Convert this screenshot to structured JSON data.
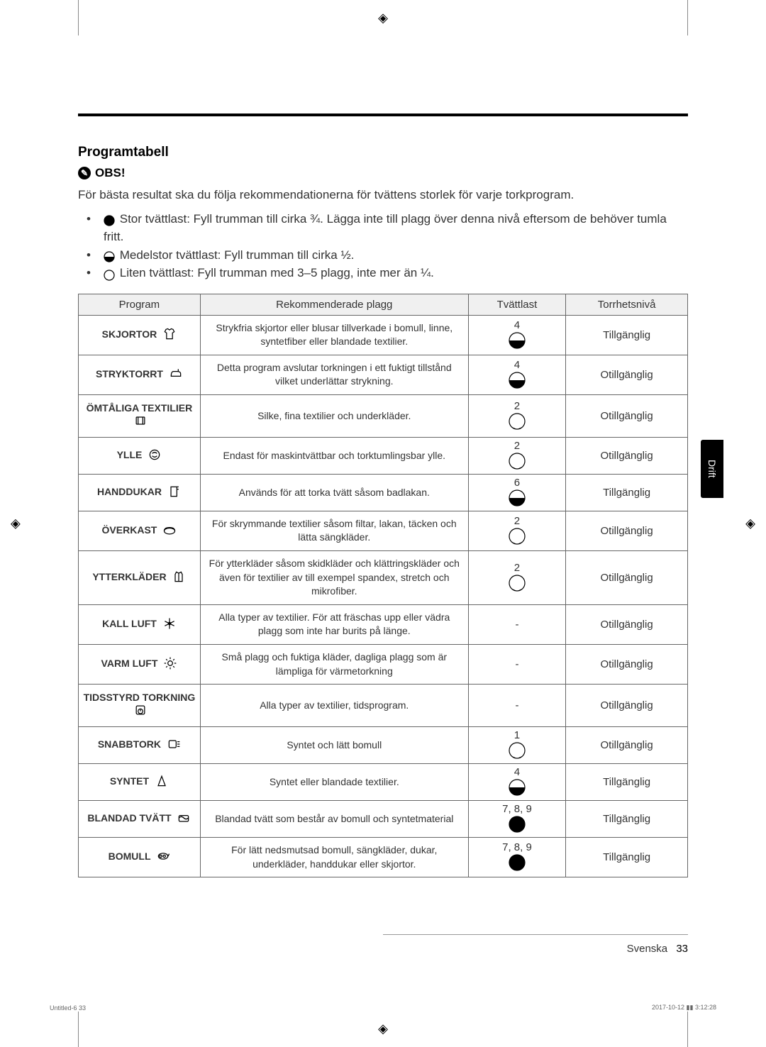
{
  "reg_marks": "◈",
  "section_title": "Programtabell",
  "obs_label": "OBS!",
  "intro": "För bästa resultat ska du följa rekommendationerna för tvättens storlek för varje torkprogram.",
  "bullets": [
    {
      "load": "large",
      "text": "Stor tvättlast: Fyll trumman till cirka ¾. Lägga inte till plagg över denna nivå eftersom de behöver tumla fritt."
    },
    {
      "load": "half",
      "text": "Medelstor tvättlast: Fyll trumman till cirka ½."
    },
    {
      "load": "small",
      "text": "Liten tvättlast: Fyll trumman med 3–5 plagg, inte mer än ¼."
    }
  ],
  "table": {
    "headers": [
      "Program",
      "Rekommenderade plagg",
      "Tvättlast",
      "Torrhetsnivå"
    ],
    "rows": [
      {
        "program": "SKJORTOR",
        "icon": "shirt",
        "rec": "Strykfria skjortor eller blusar tillverkade i bomull, linne, syntetfiber eller blandade textilier.",
        "load_num": "4",
        "load_icon": "half",
        "dry": "Tillgänglig"
      },
      {
        "program": "STRYKTORRT",
        "icon": "iron",
        "rec": "Detta program avslutar torkningen i ett fuktigt tillstånd vilket underlättar strykning.",
        "load_num": "4",
        "load_icon": "half",
        "dry": "Otillgänglig"
      },
      {
        "program": "ÖMTÅLIGA TEXTILIER",
        "icon": "delicate",
        "rec": "Silke, fina textilier och underkläder.",
        "load_num": "2",
        "load_icon": "small",
        "dry": "Otillgänglig"
      },
      {
        "program": "YLLE",
        "icon": "wool",
        "rec": "Endast för maskintvättbar och torktumlingsbar ylle.",
        "load_num": "2",
        "load_icon": "small",
        "dry": "Otillgänglig"
      },
      {
        "program": "HANDDUKAR",
        "icon": "towel",
        "rec": "Används för att torka tvätt såsom badlakan.",
        "load_num": "6",
        "load_icon": "half",
        "dry": "Tillgänglig"
      },
      {
        "program": "ÖVERKAST",
        "icon": "bedding",
        "rec": "För skrymmande textilier såsom filtar, lakan, täcken och lätta sängkläder.",
        "load_num": "2",
        "load_icon": "small",
        "dry": "Otillgänglig"
      },
      {
        "program": "YTTERKLÄDER",
        "icon": "outdoor",
        "rec": "För ytterkläder såsom skidkläder och klättringskläder och även för textilier av till exempel spandex, stretch och mikrofiber.",
        "load_num": "2",
        "load_icon": "small",
        "dry": "Otillgänglig"
      },
      {
        "program": "KALL LUFT",
        "icon": "coldair",
        "rec": "Alla typer av textilier. För att fräschas upp eller vädra plagg som inte har burits på länge.",
        "load_num": "-",
        "load_icon": "",
        "dry": "Otillgänglig"
      },
      {
        "program": "VARM LUFT",
        "icon": "warmair",
        "rec": "Små plagg och fuktiga kläder, dagliga plagg som är lämpliga för värmetorkning",
        "load_num": "-",
        "load_icon": "",
        "dry": "Otillgänglig"
      },
      {
        "program": "TIDSSTYRD TORKNING",
        "icon": "time",
        "rec": "Alla typer av textilier, tidsprogram.",
        "load_num": "-",
        "load_icon": "",
        "dry": "Otillgänglig"
      },
      {
        "program": "SNABBTORK",
        "icon": "quick",
        "rec": "Syntet och lätt bomull",
        "load_num": "1",
        "load_icon": "small",
        "dry": "Otillgänglig"
      },
      {
        "program": "SYNTET",
        "icon": "synth",
        "rec": "Syntet eller blandade textilier.",
        "load_num": "4",
        "load_icon": "half",
        "dry": "Tillgänglig"
      },
      {
        "program": "BLANDAD TVÄTT",
        "icon": "mixed",
        "rec": "Blandad tvätt som består av bomull och syntetmaterial",
        "load_num": "7, 8, 9",
        "load_icon": "large",
        "dry": "Tillgänglig"
      },
      {
        "program": "BOMULL",
        "icon": "cotton",
        "rec": "För lätt nedsmutsad bomull, sängkläder, dukar, underkläder, handdukar eller skjortor.",
        "load_num": "7, 8, 9",
        "load_icon": "large",
        "dry": "Tillgänglig"
      }
    ],
    "col_widths": [
      "20%",
      "44%",
      "16%",
      "20%"
    ]
  },
  "side_tab": "Drift",
  "footer_lang": "Svenska",
  "footer_page": "33",
  "print_left": "Untitled-6   33",
  "print_right": "2017-10-12   ▮▮ 3:12:28"
}
